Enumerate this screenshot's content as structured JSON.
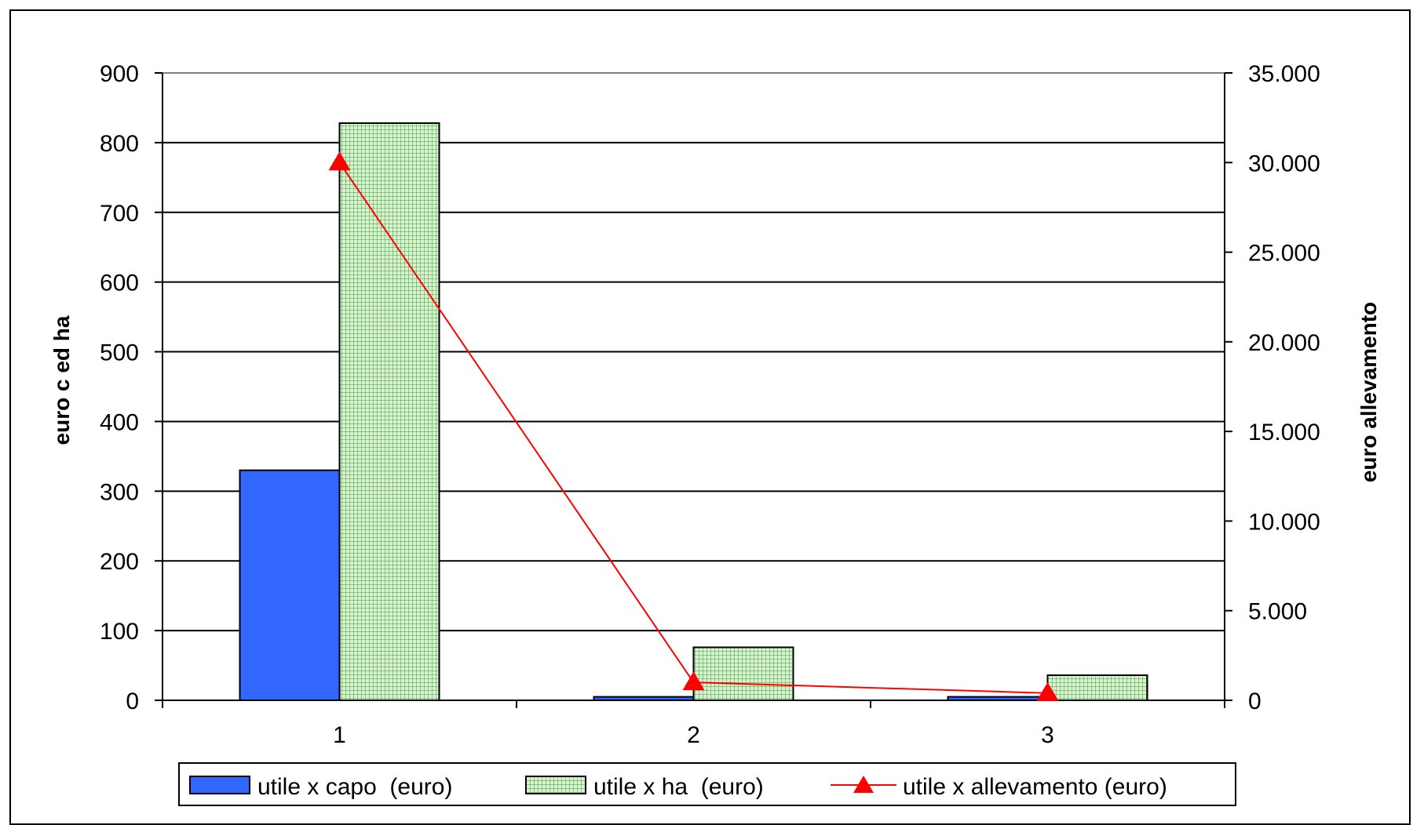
{
  "chart_data": {
    "type": "bar",
    "categories": [
      "1",
      "2",
      "3"
    ],
    "series": [
      {
        "name": "utile x capo  (euro)",
        "type": "bar",
        "axis": "left",
        "values": [
          330,
          5,
          5
        ],
        "color": "#3366FF"
      },
      {
        "name": "utile x ha  (euro)",
        "type": "bar",
        "axis": "left",
        "values": [
          828,
          76,
          36
        ],
        "color": "#B8E6B0",
        "pattern": "grid-green"
      },
      {
        "name": "utile x allevamento (euro)",
        "type": "line",
        "axis": "right",
        "values": [
          30000,
          1000,
          400
        ],
        "color": "#FF0000",
        "marker": "triangle"
      }
    ],
    "ylabel": "euro c ed ha",
    "y2label": "euro allevamento",
    "ylim": [
      0,
      900
    ],
    "y2lim": [
      0,
      35000
    ],
    "yticks": [
      "0",
      "100",
      "200",
      "300",
      "400",
      "500",
      "600",
      "700",
      "800",
      "900"
    ],
    "y2ticks": [
      "0",
      "5.000",
      "10.000",
      "15.000",
      "20.000",
      "25.000",
      "30.000",
      "35.000"
    ],
    "grid": true,
    "legend": "bottom"
  }
}
